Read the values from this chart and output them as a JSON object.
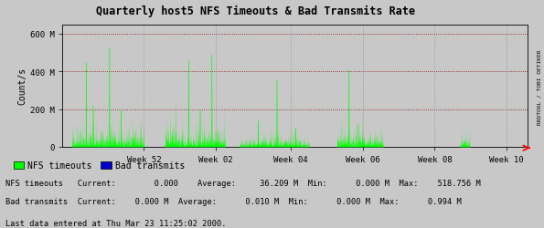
{
  "title": "Quarterly host5 NFS Timeouts & Bad Transmits Rate",
  "ylabel": "Count/s",
  "background_color": "#c8c8c8",
  "plot_bg_color": "#c8c8c8",
  "grid_h_color": "#8b0000",
  "grid_v_color": "#808080",
  "ytick_values": [
    0,
    200000000,
    400000000,
    600000000
  ],
  "ylim": [
    0,
    650000000
  ],
  "x_week_labels": [
    "Week 52",
    "Week 02",
    "Week 04",
    "Week 06",
    "Week 08",
    "Week 10"
  ],
  "x_week_positions": [
    0.175,
    0.33,
    0.49,
    0.645,
    0.8,
    0.955
  ],
  "nfs_color": "#00ff00",
  "bad_color": "#0000cd",
  "legend_nfs": "NFS timeouts",
  "legend_bad": "Bad transmits",
  "stats_line1": "NFS timeouts   Current:        0.000    Average:     36.209 M  Min:      0.000 M  Max:    518.756 M",
  "stats_line2": "Bad transmits  Current:    0.000 M  Average:      0.010 M  Min:      0.000 M  Max:      0.994 M",
  "footer": "Last data entered at Thu Mar 23 11:25:02 2000.",
  "right_label": "RRDTOOL / TOBI OETIKER"
}
